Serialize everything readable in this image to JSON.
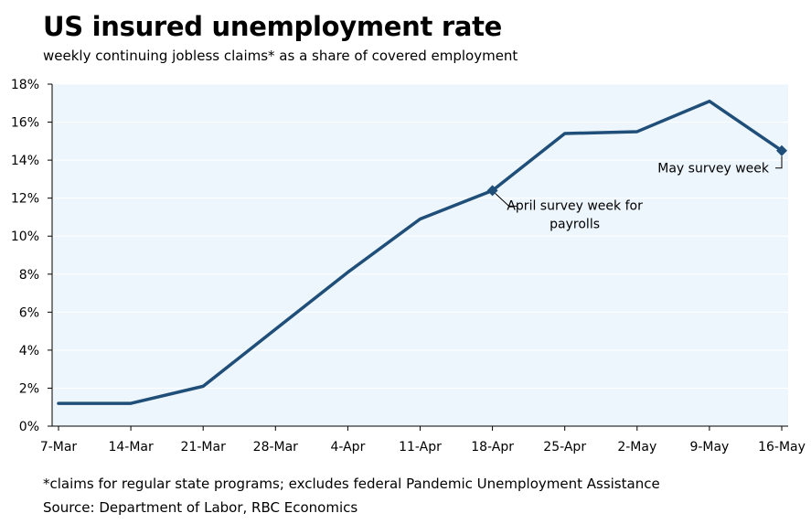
{
  "title": "US insured unemployment rate",
  "subtitle": "weekly continuing jobless claims* as a share of covered employment",
  "footnote": "*claims for regular state programs; excludes federal Pandemic Unemployment Assistance",
  "source": "Source: Department of Labor, RBC Economics",
  "colors": {
    "line": "#1f4e79",
    "plot_bg": "#eef6fd",
    "grid": "#ffffff"
  },
  "chart_data": {
    "type": "line",
    "categories": [
      "7-Mar",
      "14-Mar",
      "21-Mar",
      "28-Mar",
      "4-Apr",
      "11-Apr",
      "18-Apr",
      "25-Apr",
      "2-May",
      "9-May",
      "16-May"
    ],
    "series": [
      {
        "values": [
          1.2,
          1.2,
          2.1,
          5.1,
          8.1,
          10.9,
          12.4,
          15.4,
          15.5,
          17.1,
          14.5
        ]
      }
    ],
    "ylim": [
      0,
      18
    ],
    "yticks": [
      "0%",
      "2%",
      "4%",
      "6%",
      "8%",
      "10%",
      "12%",
      "14%",
      "16%",
      "18%"
    ],
    "grid": true,
    "annotations": [
      {
        "category": "18-Apr",
        "lines": [
          "April survey week for",
          "payrolls"
        ]
      },
      {
        "category": "16-May",
        "lines": [
          "May survey week"
        ]
      }
    ]
  }
}
